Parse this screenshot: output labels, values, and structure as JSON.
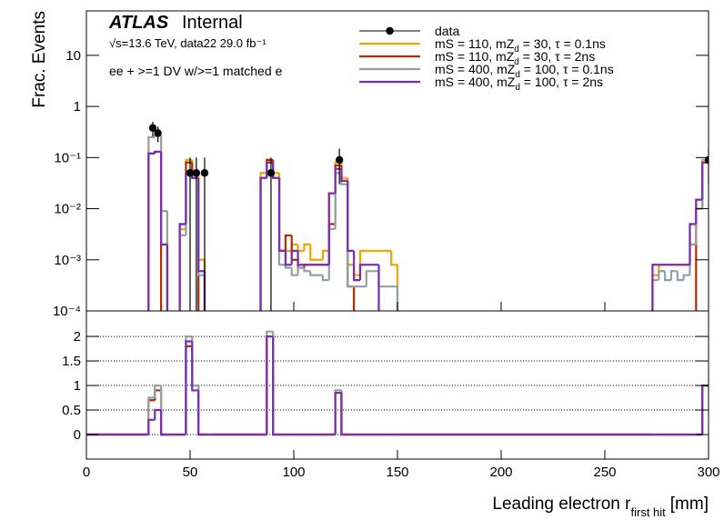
{
  "chart_data": [
    {
      "type": "histogram",
      "log_y": true,
      "experiment": "ATLAS",
      "status": "Internal",
      "energy_label": "√s=13.6 TeV, data22 29.0 fb⁻¹",
      "selection": "ee + >=1 DV w/>=1 matched e",
      "y_label": "Frac. Events",
      "xlim": [
        0,
        300
      ],
      "ylim": [
        0.0001,
        74
      ],
      "yticks": [
        {
          "value": 0.0001,
          "label": "10⁻⁴"
        },
        {
          "value": 0.001,
          "label": "10⁻³"
        },
        {
          "value": 0.01,
          "label": "10⁻²"
        },
        {
          "value": 0.1,
          "label": "10⁻¹"
        },
        1,
        10
      ],
      "bins": [
        0,
        30,
        33,
        36,
        39,
        42,
        45,
        48,
        51,
        54,
        57,
        60,
        84,
        87,
        90,
        93,
        96,
        99,
        102,
        105,
        108,
        111,
        114,
        117,
        120,
        123,
        126,
        129,
        132,
        135,
        138,
        141,
        144,
        147,
        150,
        273,
        276,
        279,
        282,
        285,
        288,
        291,
        294,
        297,
        300
      ],
      "data": {
        "name": "data",
        "color": "#000000",
        "x": [
          32,
          34.5,
          50,
          53,
          57,
          89,
          122,
          300
        ],
        "values": [
          0.38,
          0.3,
          0.05,
          0.05,
          0.05,
          0.05,
          0.09,
          0.09
        ],
        "errors": [
          0.12,
          0.1,
          0.05,
          0.05,
          0.05,
          0.05,
          0.06,
          0.06
        ]
      },
      "series": [
        {
          "name": "mS = 110, mZd = 30, τ = 0.1ns",
          "color": "#f5a300",
          "values": [
            0,
            0.25,
            0.27,
            0.009,
            0,
            0,
            0.004,
            0.09,
            0.05,
            0.001,
            0,
            0,
            0.05,
            0.09,
            0.05,
            0.0015,
            0.0015,
            0.002,
            0.0015,
            0.002,
            0.001,
            0.001,
            0.0015,
            0.02,
            0.08,
            0.04,
            0.0008,
            0.0005,
            0.0015,
            0.0015,
            0.0015,
            0.0015,
            0.0015,
            0.0008,
            0,
            0.0005,
            0.0008,
            0.0008,
            0.0008,
            0.0008,
            0.0008,
            0.005,
            0.015,
            0.09
          ]
        },
        {
          "name": "mS = 110, mZd = 30, τ = 2ns",
          "color": "#b32c00",
          "values": [
            0,
            0.12,
            0.13,
            0,
            0,
            0,
            0.005,
            0.08,
            0.04,
            0,
            0,
            0,
            0.04,
            0.09,
            0.04,
            0.0015,
            0.003,
            0.001,
            0.0007,
            0.0008,
            0.0008,
            0.0008,
            0.0008,
            0.005,
            0.07,
            0.035,
            0.0003,
            0,
            0,
            0,
            0,
            0,
            0,
            0,
            0,
            0,
            0,
            0,
            0,
            0,
            0,
            0,
            0.01,
            0.08
          ]
        },
        {
          "name": "mS = 400, mZd = 100, τ = 0.1ns",
          "color": "#92a1a8",
          "values": [
            0,
            0.25,
            0.27,
            0.009,
            0,
            0,
            0.003,
            0.05,
            0.04,
            0.0005,
            0,
            0,
            0.04,
            0.08,
            0.04,
            0.0008,
            0.0007,
            0.0005,
            0.0007,
            0.0006,
            0.0005,
            0.0005,
            0.0004,
            0.004,
            0.05,
            0.03,
            0.0003,
            0.0003,
            0.0003,
            0.0006,
            0.0006,
            0.0003,
            0.0003,
            0.0003,
            0,
            0.0004,
            0.0006,
            0.0004,
            0.0006,
            0.0004,
            0.0005,
            0.002,
            0.01,
            0.08
          ]
        },
        {
          "name": "mS = 400, mZd = 100, τ = 2ns",
          "color": "#7a2db3",
          "values": [
            0,
            0.12,
            0.13,
            0.002,
            0,
            0,
            0.005,
            0.05,
            0.04,
            0.0006,
            0,
            0,
            0.04,
            0.08,
            0.04,
            0.0015,
            0.0008,
            0.0015,
            0.0008,
            0.0008,
            0.0008,
            0.0008,
            0.0008,
            0.02,
            0.06,
            0.035,
            0.0015,
            0.0004,
            0.0008,
            0.0008,
            0.0008,
            0,
            0,
            0,
            0,
            0.0008,
            0.0008,
            0.0008,
            0.0008,
            0.0008,
            0.0008,
            0.005,
            0.015,
            0.08
          ]
        }
      ]
    },
    {
      "type": "histogram",
      "log_y": false,
      "grid": true,
      "x_label": "Leading electron r",
      "x_label_sub": "first hit",
      "x_label_unit": "[mm]",
      "xlim": [
        0,
        300
      ],
      "xticks": [
        0,
        50,
        100,
        150,
        200,
        250,
        300
      ],
      "ylim": [
        -0.5,
        2.52
      ],
      "yticks": [
        0,
        0.5,
        1,
        1.5,
        2
      ],
      "bins": [
        0,
        30,
        33,
        36,
        39,
        42,
        45,
        48,
        51,
        54,
        57,
        60,
        84,
        87,
        90,
        93,
        96,
        99,
        102,
        105,
        108,
        111,
        114,
        117,
        120,
        123,
        126,
        129,
        132,
        135,
        138,
        141,
        144,
        147,
        150,
        273,
        276,
        279,
        282,
        285,
        288,
        291,
        294,
        297,
        300
      ],
      "series": [
        {
          "color": "#f5a300",
          "values": [
            0,
            0.7,
            1,
            0,
            0,
            0,
            0,
            2,
            1,
            0,
            0,
            0,
            0,
            2,
            0,
            0,
            0,
            0,
            0,
            0,
            0,
            0,
            0,
            0,
            0.9,
            0,
            0,
            0,
            0,
            0,
            0,
            0,
            0,
            0,
            0,
            0,
            0,
            0,
            0,
            0,
            0,
            0,
            0,
            1
          ]
        },
        {
          "color": "#b32c00",
          "values": [
            0,
            0.7,
            0.9,
            0,
            0,
            0,
            0,
            1.8,
            1,
            0,
            0,
            0,
            0,
            2,
            0,
            0,
            0,
            0,
            0,
            0,
            0,
            0,
            0,
            0,
            0.9,
            0,
            0,
            0,
            0,
            0,
            0,
            0,
            0,
            0,
            0,
            0,
            0,
            0,
            0,
            0,
            0,
            0,
            0,
            1
          ]
        },
        {
          "color": "#92a1a8",
          "values": [
            0,
            0.75,
            1,
            0,
            0,
            0,
            0,
            2,
            1,
            0,
            0,
            0,
            0,
            2.1,
            0,
            0,
            0,
            0,
            0,
            0,
            0,
            0,
            0,
            0,
            0.9,
            0,
            0,
            0,
            0,
            0,
            0,
            0,
            0,
            0,
            0,
            0,
            0,
            0,
            0,
            0,
            0,
            0,
            0,
            1
          ]
        },
        {
          "color": "#7a2db3",
          "values": [
            0,
            0.3,
            0.5,
            0,
            0,
            0,
            0,
            1.9,
            0.9,
            0,
            0,
            0,
            0,
            2,
            0,
            0,
            0,
            0,
            0,
            0,
            0,
            0,
            0,
            0,
            0.85,
            0,
            0,
            0,
            0,
            0,
            0,
            0,
            0,
            0,
            0,
            0,
            0,
            0,
            0,
            0,
            0,
            0,
            0,
            1
          ]
        }
      ]
    }
  ]
}
